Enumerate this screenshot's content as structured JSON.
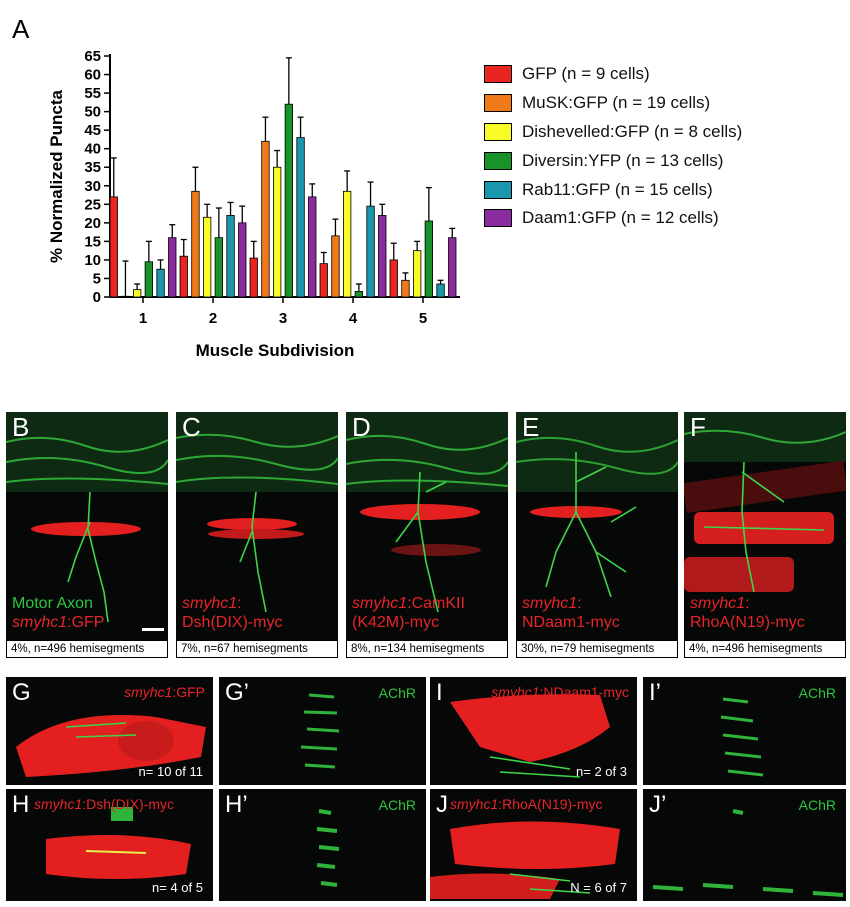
{
  "panel_a": {
    "letter": "A"
  },
  "chart_data": {
    "type": "bar",
    "ylabel": "% Normalized Puncta",
    "xlabel": "Muscle Subdivision",
    "categories": [
      "1",
      "2",
      "3",
      "4",
      "5"
    ],
    "ylim": [
      0,
      65
    ],
    "yticks": [
      0,
      5,
      10,
      15,
      20,
      25,
      30,
      35,
      40,
      45,
      50,
      55,
      60,
      65
    ],
    "series": [
      {
        "name": "GFP (n = 9 cells)",
        "color": "#e8251f",
        "values": [
          27,
          11,
          10.5,
          9,
          10
        ],
        "errors": [
          10.5,
          4.5,
          4.5,
          3,
          4.5
        ]
      },
      {
        "name": "MuSK:GFP (n = 19 cells)",
        "color": "#f07a17",
        "values": [
          0.2,
          28.5,
          42,
          16.5,
          4.5
        ],
        "errors": [
          9.5,
          6.5,
          6.5,
          4.5,
          2
        ]
      },
      {
        "name": "Dishevelled:GFP (n = 8 cells)",
        "color": "#fafc2a",
        "values": [
          2,
          21.5,
          35,
          28.5,
          12.5
        ],
        "errors": [
          1.5,
          3.5,
          4.5,
          5.5,
          2.5
        ]
      },
      {
        "name": "Diversin:YFP (n = 13 cells)",
        "color": "#18932a",
        "values": [
          9.5,
          16,
          52,
          1.5,
          20.5
        ],
        "errors": [
          5.5,
          8,
          12.5,
          2,
          9
        ]
      },
      {
        "name": "Rab11:GFP (n = 15 cells)",
        "color": "#1a96ad",
        "values": [
          7.5,
          22,
          43,
          24.5,
          3.5
        ],
        "errors": [
          2.5,
          3.5,
          5.5,
          6.5,
          1
        ]
      },
      {
        "name": "Daam1:GFP (n = 12 cells)",
        "color": "#8a2ba0",
        "values": [
          16,
          20,
          27,
          22,
          16
        ],
        "errors": [
          3.5,
          4.5,
          3.5,
          3,
          2.5
        ]
      }
    ]
  },
  "panels_top": [
    {
      "letter": "B",
      "caption": "4%, n=496 hemisegments",
      "label_green": "Motor Axon",
      "label_red_italic": "smyhc1",
      "label_red_rest": ":GFP"
    },
    {
      "letter": "C",
      "caption": "7%, n=67 hemisegments",
      "label_red_italic": "smyhc1",
      "label_red_rest": ":",
      "label_red_line2": "Dsh(DIX)-myc"
    },
    {
      "letter": "D",
      "caption": "8%, n=134 hemisegments",
      "label_red_italic": "smyhc1",
      "label_red_rest": ":CamKII",
      "label_red_line2": "(K42M)-myc"
    },
    {
      "letter": "E",
      "caption": "30%, n=79 hemisegments",
      "label_red_italic": "smyhc1",
      "label_red_rest": ":",
      "label_red_line2": "NDaam1-myc"
    },
    {
      "letter": "F",
      "caption": "4%, n=496 hemisegments",
      "label_red_italic": "smyhc1",
      "label_red_rest": ":",
      "label_red_line2": "RhoA(N19)-myc"
    }
  ],
  "panels_bottom": {
    "G": {
      "letter": "G",
      "italic": "smyhc1",
      "rest": ":GFP",
      "count": "n= 10 of 11"
    },
    "G2": {
      "letter": "G’",
      "achr": "AChR"
    },
    "I": {
      "letter": "I",
      "italic": "smyhc1",
      "rest": ":NDaam1-myc",
      "count": "n= 2 of 3"
    },
    "I2": {
      "letter": "I’",
      "achr": "AChR"
    },
    "H": {
      "letter": "H",
      "italic": "smyhc1",
      "rest": ":Dsh(DIX)-myc",
      "count": "n= 4 of 5"
    },
    "H2": {
      "letter": "H’",
      "achr": "AChR"
    },
    "J": {
      "letter": "J",
      "italic": "smyhc1",
      "rest": ":RhoA(N19)-myc",
      "count": "N = 6 of 7"
    },
    "J2": {
      "letter": "J’",
      "achr": "AChR"
    }
  }
}
